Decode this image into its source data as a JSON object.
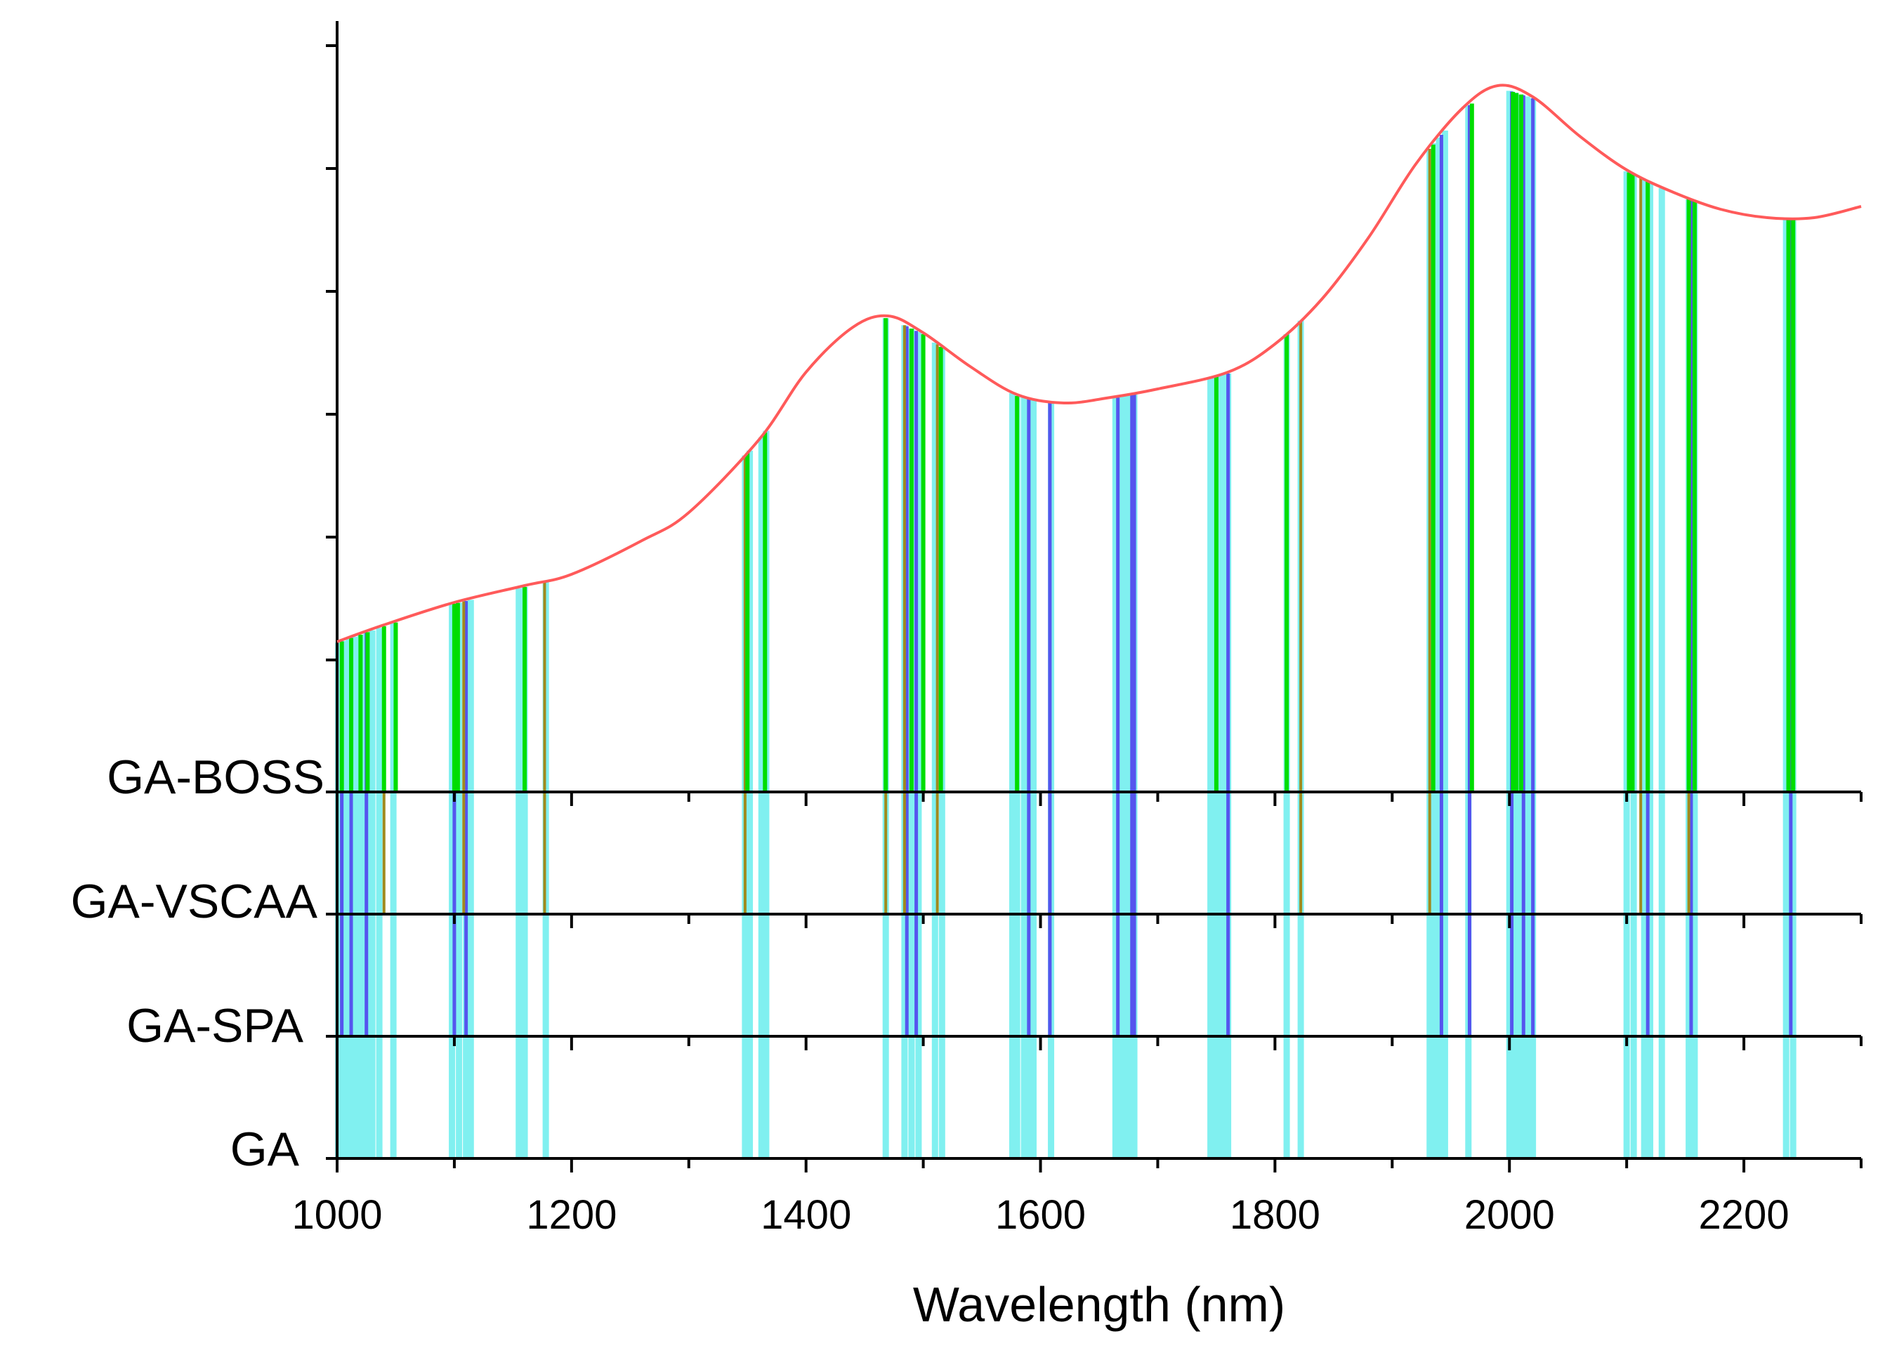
{
  "chart_data": {
    "type": "line",
    "title": "",
    "xlabel": "Wavelength (nm)",
    "ylabel": "",
    "xlim": [
      1000,
      2300
    ],
    "x_ticks": [
      1000,
      1200,
      1400,
      1600,
      1800,
      2000,
      2200
    ],
    "x_tick_labels": [
      "1000",
      "1200",
      "1400",
      "1600",
      "1800",
      "2000",
      "2200"
    ],
    "grid": false,
    "rows": [
      "GA-BOSS",
      "GA-VSCAA",
      "GA-SPA",
      "GA"
    ],
    "colors": {
      "spectrum": "#ff5a5a",
      "GA-BOSS": "#00dd00",
      "GA-VSCAA": "#a08a1e",
      "GA-SPA": "#5555ee",
      "GA": "#80f0f0",
      "axis": "#000000"
    },
    "spectrum": {
      "name": "Spectrum",
      "x": [
        1000,
        1040,
        1100,
        1160,
        1200,
        1260,
        1300,
        1360,
        1400,
        1440,
        1470,
        1500,
        1540,
        1580,
        1620,
        1660,
        1700,
        1760,
        1800,
        1840,
        1880,
        1920,
        1960,
        1990,
        2020,
        2060,
        2100,
        2140,
        2180,
        2220,
        2260,
        2300
      ],
      "y": [
        0.22,
        0.25,
        0.29,
        0.32,
        0.34,
        0.4,
        0.45,
        0.58,
        0.7,
        0.78,
        0.8,
        0.77,
        0.71,
        0.66,
        0.645,
        0.655,
        0.67,
        0.7,
        0.75,
        0.83,
        0.94,
        1.07,
        1.17,
        1.21,
        1.19,
        1.12,
        1.06,
        1.02,
        0.99,
        0.975,
        0.975,
        0.995
      ]
    },
    "selected_wavelengths": {
      "GA-BOSS": [
        1004,
        1012,
        1020,
        1026,
        1040,
        1050,
        1100,
        1103,
        1160,
        1350,
        1365,
        1468,
        1490,
        1500,
        1515,
        1580,
        1750,
        1810,
        1935,
        1968,
        2003,
        2006,
        2010,
        2102,
        2105,
        2118,
        2153,
        2158,
        2238,
        2242
      ],
      "GA-VSCAA": [
        1040,
        1108,
        1177,
        1348,
        1468,
        1484,
        1512,
        1822,
        1932,
        2112,
        2153
      ],
      "GA-SPA": [
        1004,
        1012,
        1025,
        1100,
        1110,
        1486,
        1494,
        1590,
        1608,
        1666,
        1678,
        1680,
        1760,
        1942,
        1966,
        2002,
        2012,
        2020,
        2118,
        2155,
        2240
      ],
      "GA": [
        1001,
        1005,
        1010,
        1015,
        1020,
        1025,
        1030,
        1036,
        1048,
        1098,
        1104,
        1110,
        1114,
        1155,
        1160,
        1178,
        1348,
        1352,
        1362,
        1366,
        1468,
        1484,
        1490,
        1496,
        1510,
        1516,
        1576,
        1580,
        1586,
        1590,
        1594,
        1609,
        1664,
        1668,
        1672,
        1676,
        1680,
        1745,
        1750,
        1755,
        1760,
        1810,
        1822,
        1932,
        1936,
        1940,
        1945,
        1965,
        2000,
        2005,
        2010,
        2015,
        2020,
        2100,
        2106,
        2115,
        2120,
        2130,
        2153,
        2158,
        2236,
        2242
      ]
    }
  }
}
